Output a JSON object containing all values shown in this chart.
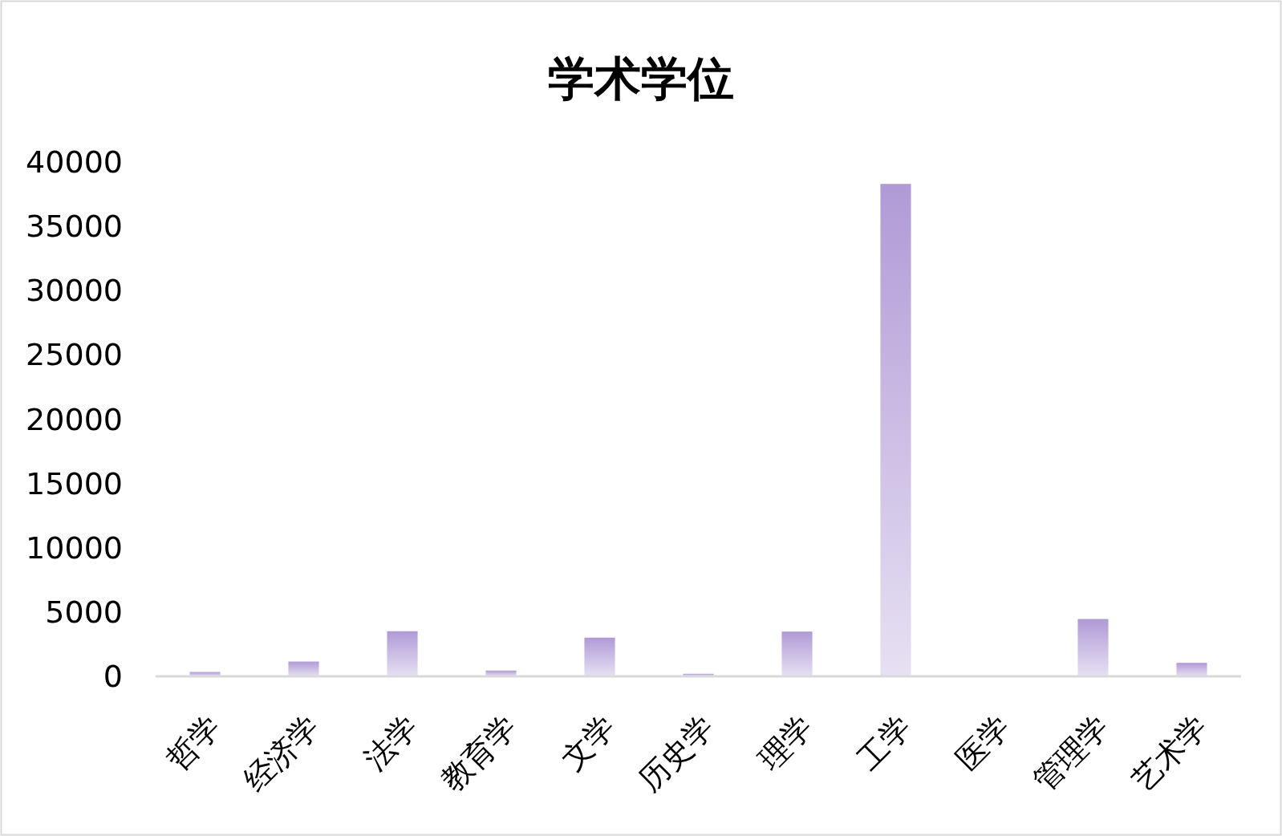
{
  "chart_data": {
    "type": "bar",
    "title": "学术学位",
    "categories": [
      "哲学",
      "经济学",
      "法学",
      "教育学",
      "文学",
      "历史学",
      "理学",
      "工学",
      "医学",
      "管理学",
      "艺术学"
    ],
    "values": [
      340,
      1150,
      3510,
      450,
      3010,
      200,
      3480,
      38300,
      0,
      4460,
      1050
    ],
    "color": "#b09ad6",
    "ylim": [
      0,
      40000
    ],
    "yticks": [
      0,
      5000,
      10000,
      15000,
      20000,
      25000,
      30000,
      35000,
      40000
    ],
    "grid": false
  }
}
